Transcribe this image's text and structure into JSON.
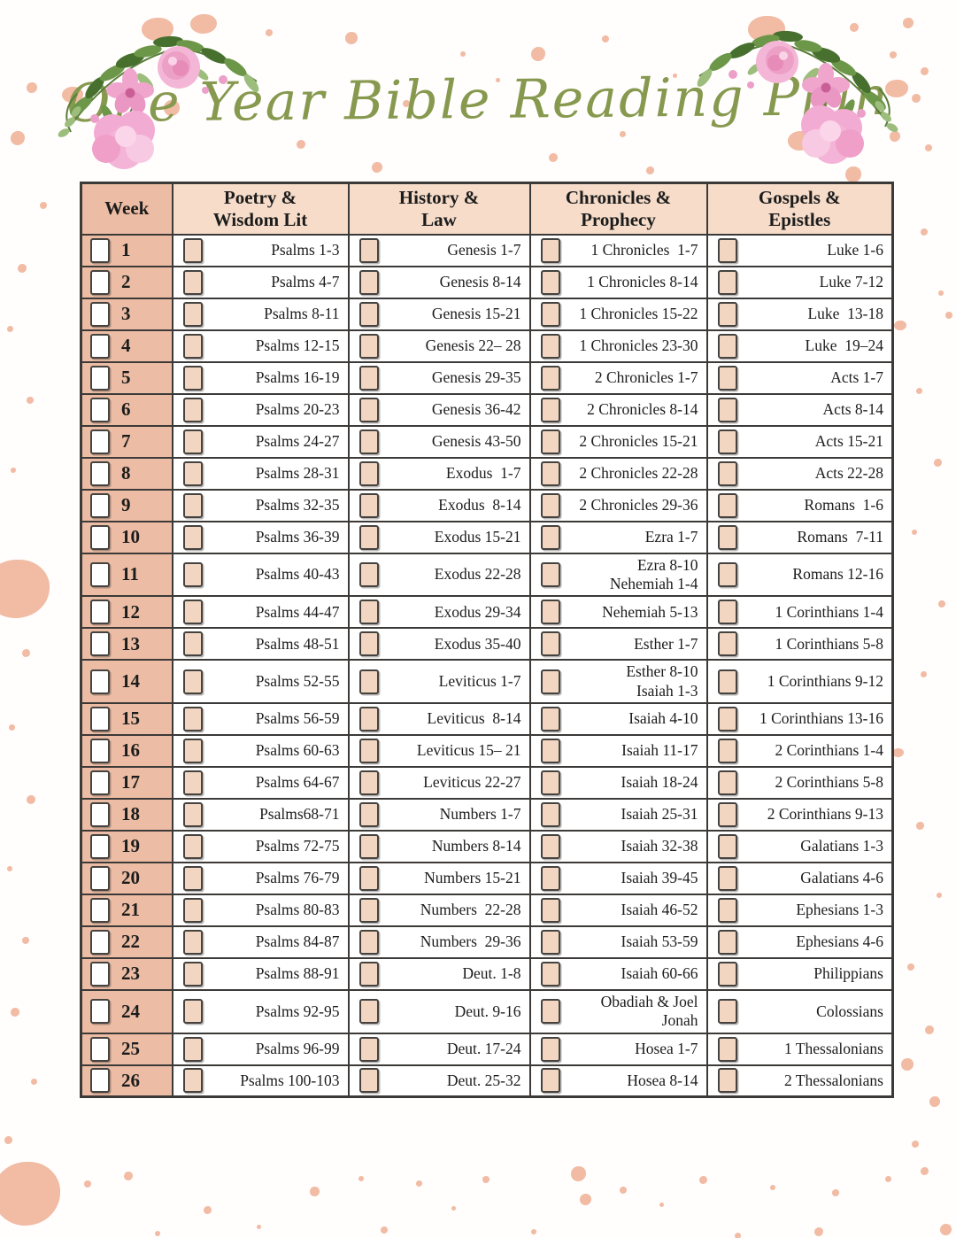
{
  "title": "One Year Bible Reading Plan",
  "table": {
    "headers": [
      "Week",
      "Poetry &\nWisdom Lit",
      "History &\nLaw",
      "Chronicles &\nProphecy",
      "Gospels &\nEpistles"
    ],
    "rows": [
      {
        "week": "1",
        "readings": [
          "Psalms 1-3",
          "Genesis 1-7",
          "1 Chronicles  1-7",
          "Luke 1-6"
        ]
      },
      {
        "week": "2",
        "readings": [
          "Psalms 4-7",
          "Genesis 8-14",
          "1 Chronicles 8-14",
          "Luke 7-12"
        ]
      },
      {
        "week": "3",
        "readings": [
          "Psalms 8-11",
          "Genesis 15-21",
          "1 Chronicles 15-22",
          "Luke  13-18"
        ]
      },
      {
        "week": "4",
        "readings": [
          "Psalms 12-15",
          "Genesis 22– 28",
          "1 Chronicles 23-30",
          "Luke  19–24"
        ]
      },
      {
        "week": "5",
        "readings": [
          "Psalms 16-19",
          "Genesis 29-35",
          "2 Chronicles 1-7",
          "Acts 1-7"
        ]
      },
      {
        "week": "6",
        "readings": [
          "Psalms 20-23",
          "Genesis 36-42",
          "2 Chronicles 8-14",
          "Acts 8-14"
        ]
      },
      {
        "week": "7",
        "readings": [
          "Psalms 24-27",
          "Genesis 43-50",
          "2 Chronicles 15-21",
          "Acts 15-21"
        ]
      },
      {
        "week": "8",
        "readings": [
          "Psalms 28-31",
          "Exodus  1-7",
          "2 Chronicles 22-28",
          "Acts 22-28"
        ]
      },
      {
        "week": "9",
        "readings": [
          "Psalms 32-35",
          "Exodus  8-14",
          "2 Chronicles 29-36",
          "Romans  1-6"
        ]
      },
      {
        "week": "10",
        "readings": [
          "Psalms 36-39",
          "Exodus 15-21",
          "Ezra 1-7",
          "Romans  7-11"
        ]
      },
      {
        "week": "11",
        "readings": [
          "Psalms 40-43",
          "Exodus 22-28",
          "Ezra 8-10\nNehemiah 1-4",
          "Romans 12-16"
        ]
      },
      {
        "week": "12",
        "readings": [
          "Psalms 44-47",
          "Exodus 29-34",
          "Nehemiah 5-13",
          "1 Corinthians 1-4"
        ]
      },
      {
        "week": "13",
        "readings": [
          "Psalms 48-51",
          "Exodus 35-40",
          "Esther 1-7",
          "1 Corinthians 5-8"
        ]
      },
      {
        "week": "14",
        "readings": [
          "Psalms 52-55",
          "Leviticus 1-7",
          "Esther 8-10\nIsaiah 1-3",
          "1 Corinthians 9-12"
        ]
      },
      {
        "week": "15",
        "readings": [
          "Psalms 56-59",
          "Leviticus  8-14",
          "Isaiah 4-10",
          "1 Corinthians 13-16"
        ]
      },
      {
        "week": "16",
        "readings": [
          "Psalms 60-63",
          "Leviticus 15– 21",
          "Isaiah 11-17",
          "2 Corinthians 1-4"
        ]
      },
      {
        "week": "17",
        "readings": [
          "Psalms 64-67",
          "Leviticus 22-27",
          "Isaiah 18-24",
          "2 Corinthians 5-8"
        ]
      },
      {
        "week": "18",
        "readings": [
          "Psalms68-71",
          "Numbers 1-7",
          "Isaiah 25-31",
          "2 Corinthians 9-13"
        ]
      },
      {
        "week": "19",
        "readings": [
          "Psalms 72-75",
          "Numbers 8-14",
          "Isaiah 32-38",
          "Galatians 1-3"
        ]
      },
      {
        "week": "20",
        "readings": [
          "Psalms 76-79",
          "Numbers 15-21",
          "Isaiah 39-45",
          "Galatians 4-6"
        ]
      },
      {
        "week": "21",
        "readings": [
          "Psalms 80-83",
          "Numbers  22-28",
          "Isaiah 46-52",
          "Ephesians 1-3"
        ]
      },
      {
        "week": "22",
        "readings": [
          "Psalms 84-87",
          "Numbers  29-36",
          "Isaiah 53-59",
          "Ephesians 4-6"
        ]
      },
      {
        "week": "23",
        "readings": [
          "Psalms 88-91",
          "Deut. 1-8",
          "Isaiah 60-66",
          "Philippians"
        ]
      },
      {
        "week": "24",
        "readings": [
          "Psalms 92-95",
          "Deut. 9-16",
          "Obadiah & Joel\nJonah",
          "Colossians"
        ]
      },
      {
        "week": "25",
        "readings": [
          "Psalms 96-99",
          "Deut. 17-24",
          "Hosea 1-7",
          "1 Thessalonians"
        ]
      },
      {
        "week": "26",
        "readings": [
          "Psalms 100-103",
          "Deut. 25-32",
          "Hosea 8-14",
          "2 Thessalonians"
        ]
      }
    ]
  },
  "colors": {
    "week_column_salmon": "#ecbda4",
    "header_peach": "#f6dcc9",
    "checkbox_peach": "#f3d6c2",
    "title_green": "#87994f",
    "splatter_pink": "#f1bba4",
    "border_dark": "#3c3a38"
  },
  "icons": {
    "week_checkbox": "empty-checkbox",
    "reading_checkbox": "empty-checkbox"
  }
}
